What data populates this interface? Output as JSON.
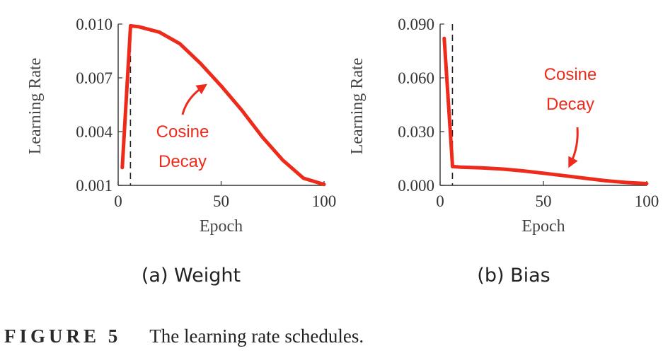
{
  "chart_data": [
    {
      "id": "a",
      "type": "line",
      "subtitle": "(a) Weight",
      "xlabel": "Epoch",
      "ylabel": "Learning Rate",
      "xlim": [
        0,
        100
      ],
      "ylim": [
        0.001,
        0.01
      ],
      "xticks": [
        "0",
        "50",
        "100"
      ],
      "yticks": [
        "0.001",
        "0.004",
        "0.007",
        "0.010"
      ],
      "warmup_epoch": 7,
      "annotation": [
        "Cosine",
        "Decay"
      ],
      "color": "#ee2a1b",
      "series": [
        {
          "name": "warmup",
          "x": [
            2,
            6
          ],
          "y": [
            0.002,
            0.0099
          ]
        },
        {
          "name": "cosine",
          "x": [
            6,
            10,
            20,
            30,
            40,
            50,
            60,
            70,
            80,
            90,
            100
          ],
          "y": [
            0.0099,
            0.00985,
            0.00955,
            0.0089,
            0.0078,
            0.00655,
            0.0052,
            0.0037,
            0.0024,
            0.0014,
            0.00105
          ]
        }
      ]
    },
    {
      "id": "b",
      "type": "line",
      "subtitle": "(b) Bias",
      "xlabel": "Epoch",
      "ylabel": "Learning Rate",
      "xlim": [
        0,
        100
      ],
      "ylim": [
        0.0,
        0.09
      ],
      "xticks": [
        "0",
        "50",
        "100"
      ],
      "yticks": [
        "0.000",
        "0.030",
        "0.060",
        "0.090"
      ],
      "warmup_epoch": 7,
      "annotation": [
        "Cosine",
        "Decay"
      ],
      "color": "#ee2a1b",
      "series": [
        {
          "name": "warmup",
          "x": [
            2,
            6
          ],
          "y": [
            0.082,
            0.011
          ]
        },
        {
          "name": "cosine",
          "x": [
            6,
            10,
            20,
            30,
            40,
            50,
            60,
            70,
            80,
            90,
            100
          ],
          "y": [
            0.0105,
            0.0102,
            0.0098,
            0.0091,
            0.0081,
            0.0068,
            0.0054,
            0.004,
            0.0026,
            0.0016,
            0.001
          ]
        }
      ]
    }
  ],
  "caption": {
    "label": "FIGURE 5",
    "text": "The learning rate schedules."
  }
}
